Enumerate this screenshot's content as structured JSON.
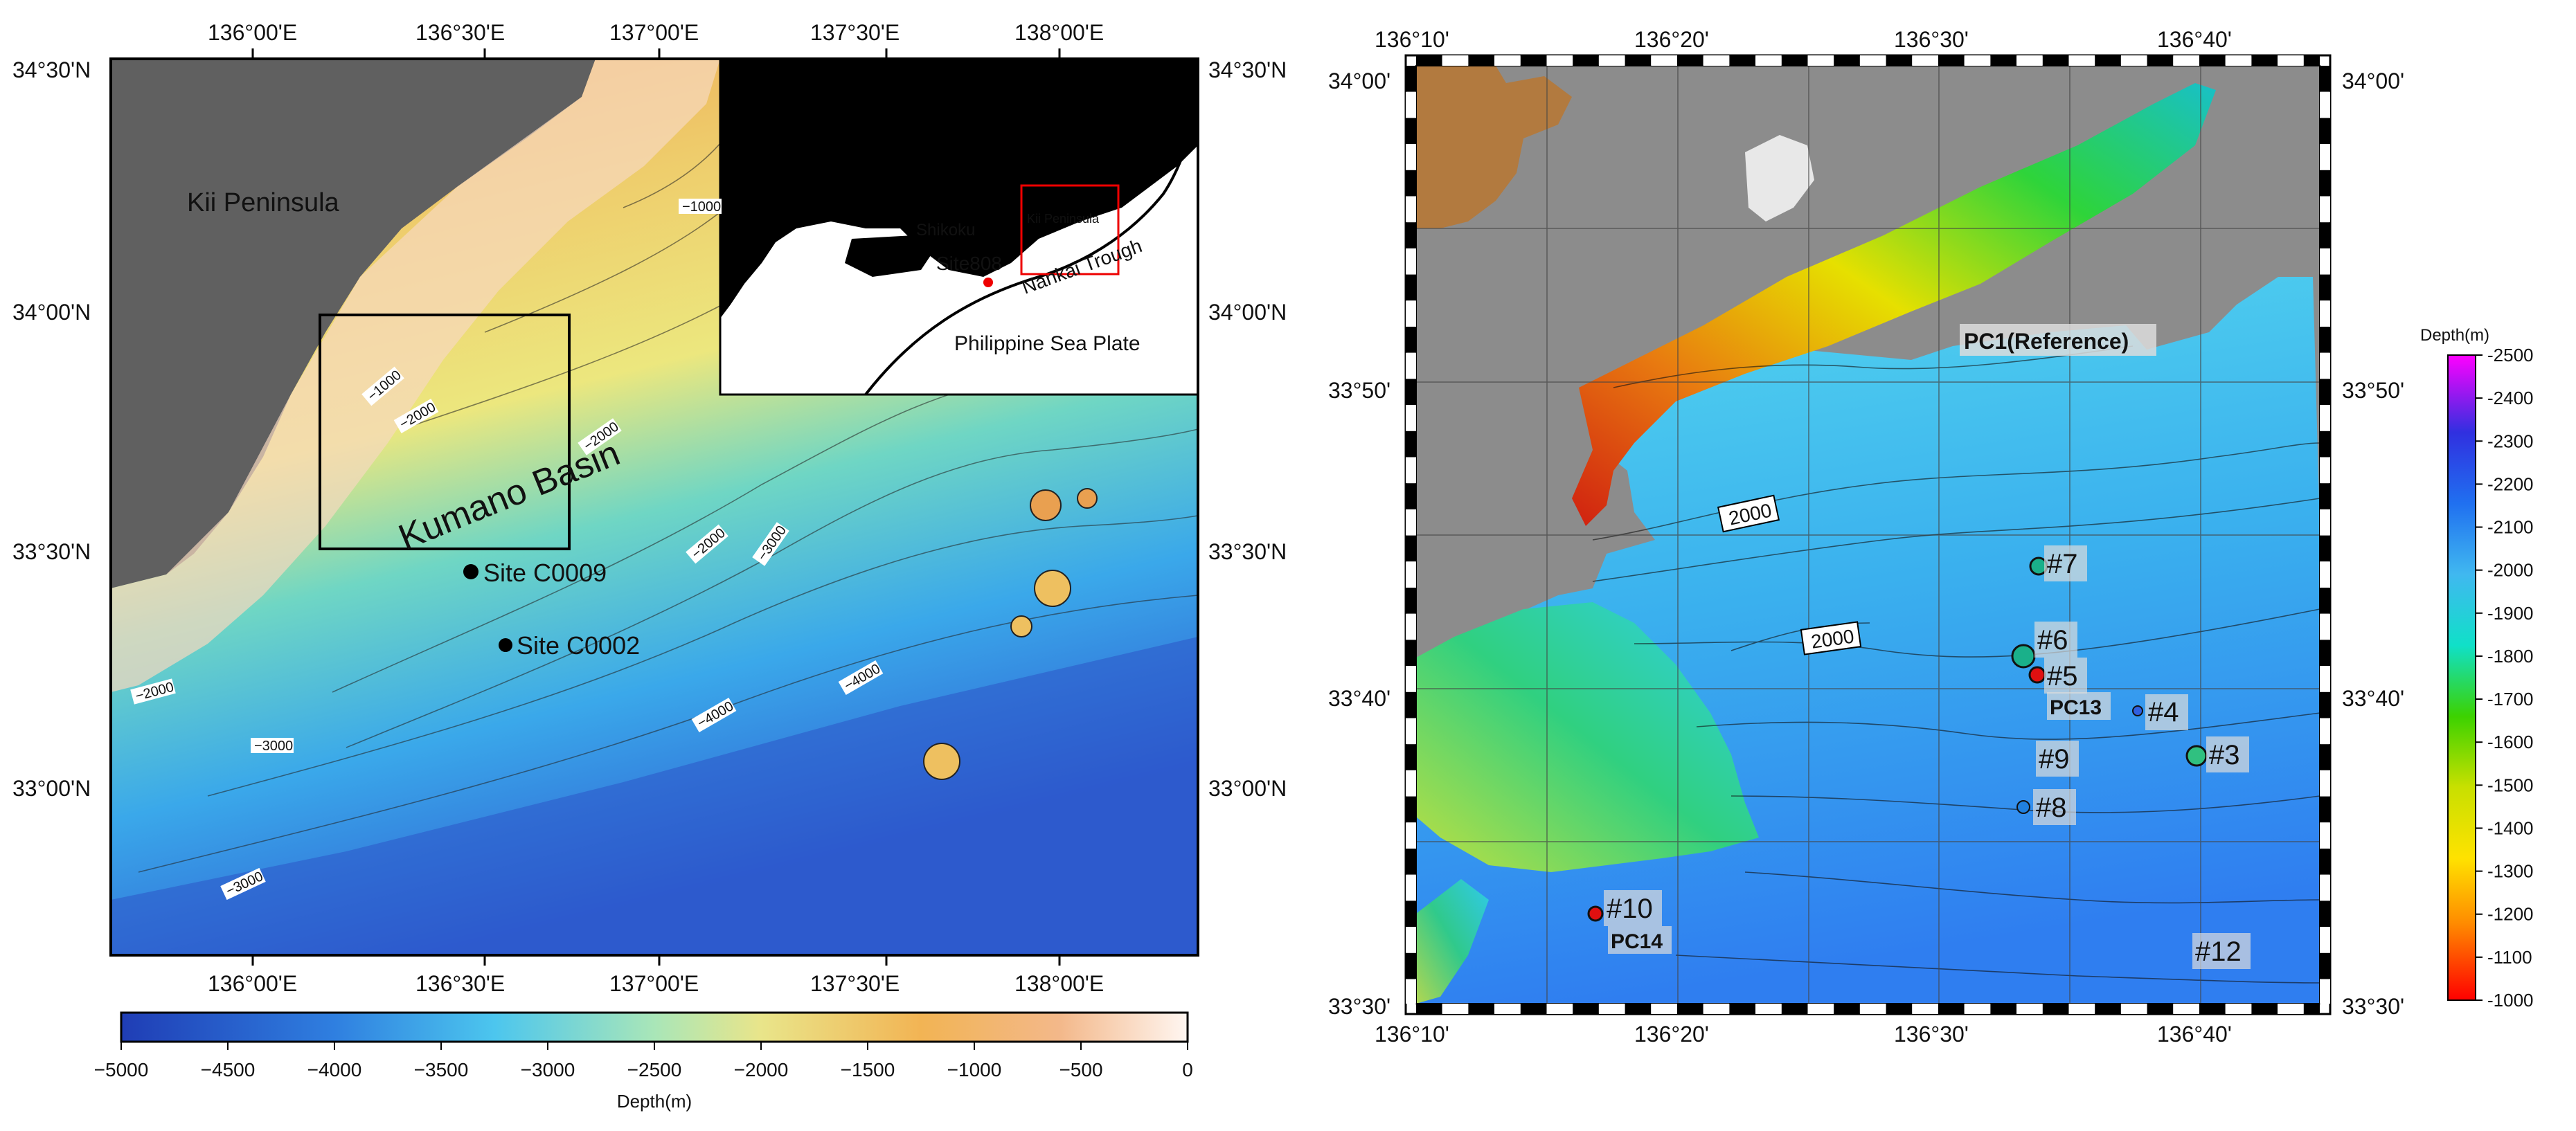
{
  "left_map": {
    "top_ticks": [
      "136°00'E",
      "136°30'E",
      "137°00'E",
      "137°30'E",
      "138°00'E"
    ],
    "bottom_ticks": [
      "136°00'E",
      "136°30'E",
      "137°00'E",
      "137°30'E",
      "138°00'E"
    ],
    "left_ticks": [
      "34°30'N",
      "34°00'N",
      "33°30'N",
      "33°00'N"
    ],
    "right_ticks": [
      "34°30'N",
      "34°00'N",
      "33°30'N",
      "33°00'N"
    ],
    "place_labels": {
      "kii": "Kii Peninsula",
      "basin": "Kumano Basin"
    },
    "sites": [
      {
        "name": "Site C0009",
        "lon": 136.53,
        "lat": 33.46
      },
      {
        "name": "Site C0002",
        "lon": 136.62,
        "lat": 33.31
      }
    ],
    "contour_labels": [
      "−1000",
      "−1000",
      "−2000",
      "−2000",
      "−2000",
      "−3000",
      "−2000",
      "−3000",
      "−3000",
      "−4000",
      "−4000",
      "−4000"
    ],
    "inset": {
      "labels": {
        "shikoku": "Shikoku",
        "kii": "Kii Peninsula",
        "site": "Site808",
        "trough": "Nankai Trough",
        "plate": "Philippine Sea Plate"
      }
    },
    "colorbar": {
      "ticks": [
        "−5000",
        "−4500",
        "−4000",
        "−3500",
        "−3000",
        "−2500",
        "−2000",
        "−1500",
        "−1000",
        "−500",
        "0"
      ],
      "label": "Depth(m)",
      "range": [
        -5000,
        0
      ]
    }
  },
  "right_map": {
    "top_ticks": [
      "136°10'",
      "136°20'",
      "136°30'",
      "136°40'"
    ],
    "bottom_ticks": [
      "136°10'",
      "136°20'",
      "136°30'",
      "136°40'"
    ],
    "left_ticks": [
      "34°00'",
      "33°50'",
      "33°40'",
      "33°30'"
    ],
    "right_ticks": [
      "34°00'",
      "33°50'",
      "33°40'",
      "33°30'"
    ],
    "contour_labels": [
      "2000",
      "2000"
    ],
    "stations": [
      {
        "name": "PC1(Reference)"
      },
      {
        "name": "#7"
      },
      {
        "name": "#6"
      },
      {
        "name": "#5"
      },
      {
        "name": "PC13"
      },
      {
        "name": "#4"
      },
      {
        "name": "#3"
      },
      {
        "name": "#9"
      },
      {
        "name": "#8"
      },
      {
        "name": "#10"
      },
      {
        "name": "PC14"
      },
      {
        "name": "#12"
      }
    ],
    "colorbar": {
      "label": "Depth(m)",
      "ticks": [
        "-2500",
        "-2400",
        "-2300",
        "-2200",
        "-2100",
        "-2000",
        "-1900",
        "-1800",
        "-1700",
        "-1600",
        "-1500",
        "-1400",
        "-1300",
        "-1200",
        "-1100",
        "-1000"
      ],
      "range": [
        -2500,
        -1000
      ]
    }
  }
}
